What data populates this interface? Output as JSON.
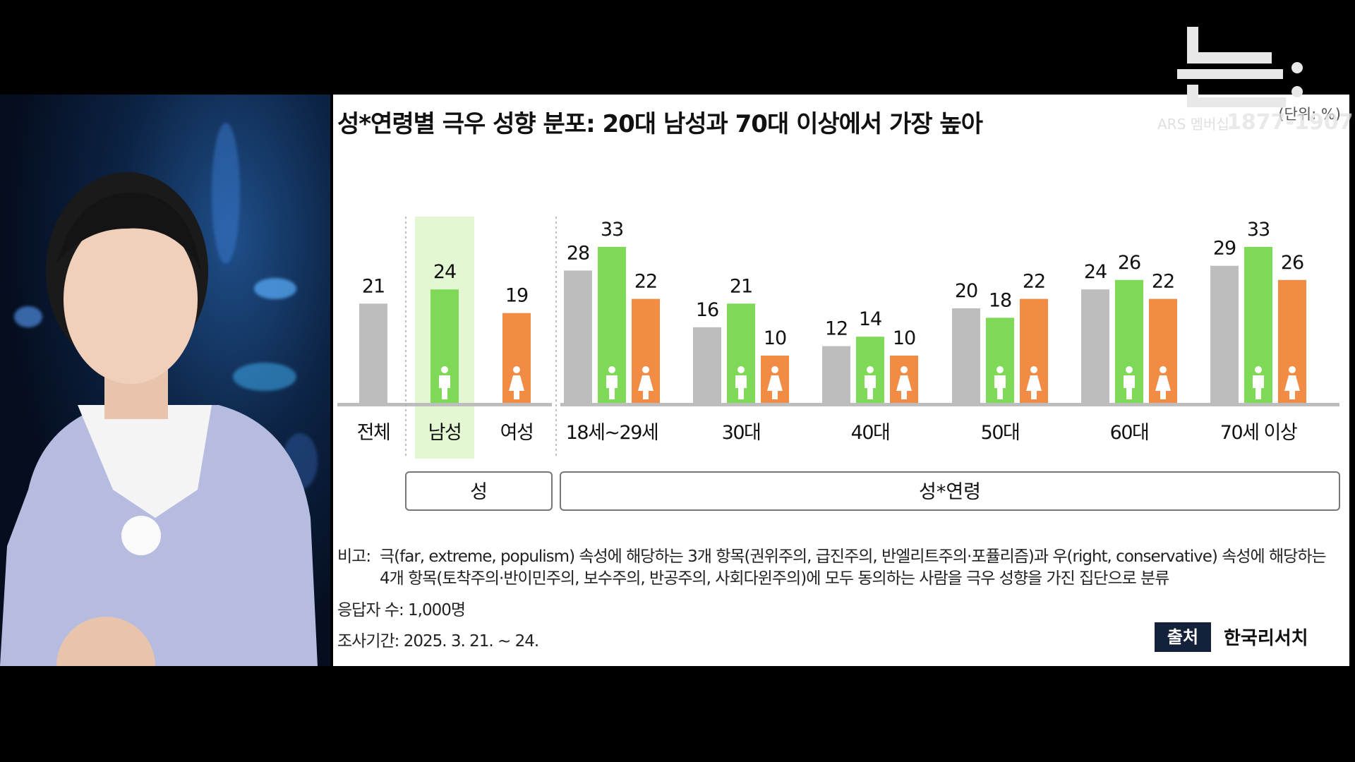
{
  "chart_data": {
    "type": "bar",
    "title": "성*연령별 극우 성향 분포: 20대 남성과 70대 이상에서 가장 높아",
    "unit": "(단위: %)",
    "groups": [
      {
        "category": "전체",
        "values": [
          21
        ],
        "kinds": [
          "total"
        ]
      },
      {
        "category": "남성",
        "values": [
          24
        ],
        "kinds": [
          "male"
        ],
        "highlight": true
      },
      {
        "category": "여성",
        "values": [
          19
        ],
        "kinds": [
          "female"
        ]
      },
      {
        "category": "18세~29세",
        "values": [
          28,
          33,
          22
        ],
        "kinds": [
          "total",
          "male",
          "female"
        ]
      },
      {
        "category": "30대",
        "values": [
          16,
          21,
          10
        ],
        "kinds": [
          "total",
          "male",
          "female"
        ]
      },
      {
        "category": "40대",
        "values": [
          12,
          14,
          10
        ],
        "kinds": [
          "total",
          "male",
          "female"
        ]
      },
      {
        "category": "50대",
        "values": [
          20,
          18,
          22
        ],
        "kinds": [
          "total",
          "male",
          "female"
        ]
      },
      {
        "category": "60대",
        "values": [
          24,
          26,
          22
        ],
        "kinds": [
          "total",
          "male",
          "female"
        ]
      },
      {
        "category": "70세 이상",
        "values": [
          29,
          33,
          26
        ],
        "kinds": [
          "total",
          "male",
          "female"
        ]
      }
    ],
    "sections": [
      "성",
      "성*연령"
    ],
    "colors": {
      "total": "#bdbdbd",
      "male": "#7ed957",
      "female": "#f28c45",
      "highlight": "#e4f7d3",
      "axis": "#bdbdbd"
    },
    "ylim": [
      0,
      40
    ]
  },
  "notes": {
    "remark_label": "비고:",
    "remark_text": "극(far, extreme, populism) 속성에 해당하는 3개 항목(권위주의, 급진주의, 반엘리트주의·포퓰리즘)과 우(right, conservative) 속성에 해당하는 4개 항목(토착주의·반이민주의, 보수주의, 반공주의, 사회다윈주의)에 모두 동의하는 사람을 극우 성향을 가진 집단으로 분류",
    "respondents": "응답자 수: 1,000명",
    "period": "조사기간: 2025. 3. 21. ~ 24."
  },
  "source": {
    "label": "출처",
    "name": "한국리서치"
  },
  "logo": {
    "sub": "ARS 멤버십",
    "years": "1877-1907"
  }
}
